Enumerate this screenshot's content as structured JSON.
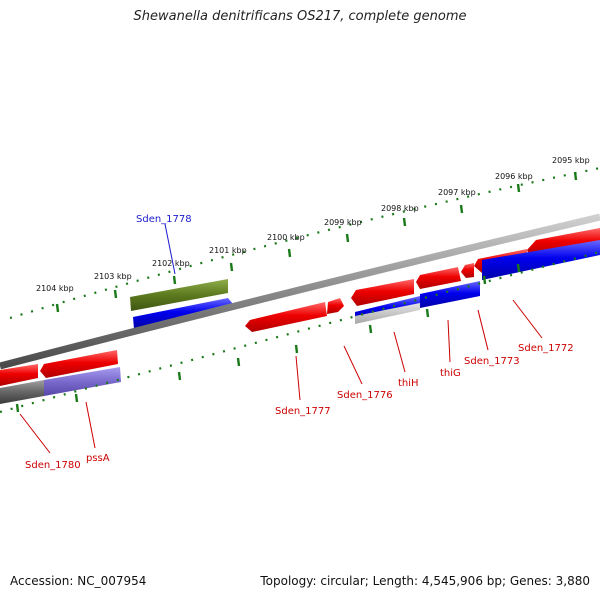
{
  "title": "Shewanella denitrificans OS217, complete genome",
  "footer": {
    "accession": "Accession: NC_007954",
    "summary": "Topology: circular; Length: 4,545,906 bp; Genes: 3,880"
  },
  "colors": {
    "forward_gene": "#e00000",
    "reverse_gene": "#0000e0",
    "rna_gene": "#5c7a1e",
    "alt_gene": "#7a6acd",
    "backbone": "#8c8c8c",
    "tick": "#1a7a1a",
    "forward_label": "#cc0000",
    "highlight_label": "#1a1acc"
  },
  "scale_labels": [
    "2095 kbp",
    "2096 kbp",
    "2097 kbp",
    "2098 kbp",
    "2099 kbp",
    "2100 kbp",
    "2101 kbp",
    "2102 kbp",
    "2103 kbp",
    "2104 kbp"
  ],
  "gene_labels": [
    {
      "id": "sden1778",
      "text": "Sden_1778",
      "highlight": true
    },
    {
      "id": "sden1777",
      "text": "Sden_1777"
    },
    {
      "id": "sden1776",
      "text": "Sden_1776"
    },
    {
      "id": "thiH",
      "text": "thiH"
    },
    {
      "id": "thiG",
      "text": "thiG"
    },
    {
      "id": "sden1773",
      "text": "Sden_1773"
    },
    {
      "id": "sden1772",
      "text": "Sden_1772"
    },
    {
      "id": "sden1780",
      "text": "Sden_1780"
    },
    {
      "id": "pssA",
      "text": "pssA"
    }
  ]
}
